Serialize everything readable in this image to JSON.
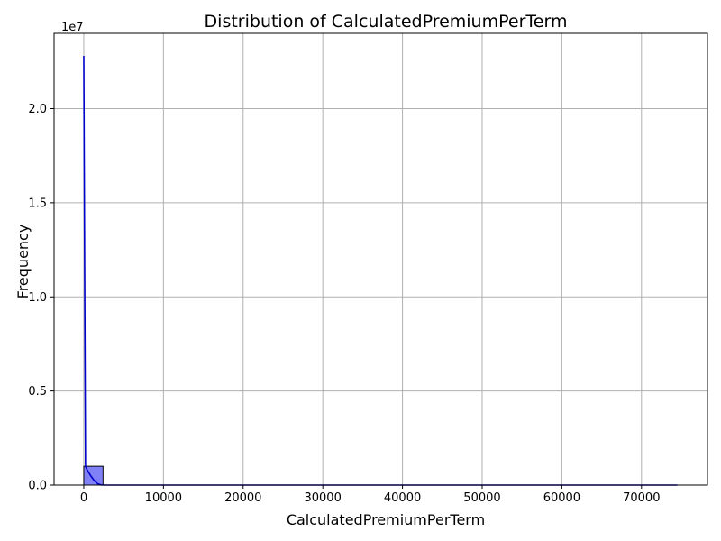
{
  "chart_data": {
    "type": "bar",
    "title": "Distribution of CalculatedPremiumPerTerm",
    "xlabel": "CalculatedPremiumPerTerm",
    "ylabel": "Frequency",
    "y_offset_label": "1e7",
    "xlim": [
      -3728,
      78281
    ],
    "ylim": [
      0,
      24000000
    ],
    "x_ticks": [
      0,
      10000,
      20000,
      30000,
      40000,
      50000,
      60000,
      70000
    ],
    "x_tick_labels": [
      "0",
      "10000",
      "20000",
      "30000",
      "40000",
      "50000",
      "60000",
      "70000"
    ],
    "y_ticks": [
      0,
      5000000,
      10000000,
      15000000,
      20000000
    ],
    "y_tick_labels": [
      "0.0",
      "0.5",
      "1.0",
      "1.5",
      "2.0"
    ],
    "grid": true,
    "bins": [
      {
        "start": 0,
        "end": 2416,
        "count": 1000000
      }
    ],
    "kde": {
      "x": [
        0,
        215,
        430,
        860,
        1290,
        1720,
        2150,
        2580,
        4000,
        10000,
        30000,
        50000,
        74500
      ],
      "y": [
        22800000,
        1000000,
        800000,
        500000,
        250000,
        80000,
        10000,
        0,
        0,
        0,
        0,
        0,
        0
      ]
    },
    "colors": {
      "bar_fill": "#8080f7",
      "bar_edge": "#000000",
      "kde_line": "#0000cc",
      "grid": "#b0b0b0"
    }
  }
}
